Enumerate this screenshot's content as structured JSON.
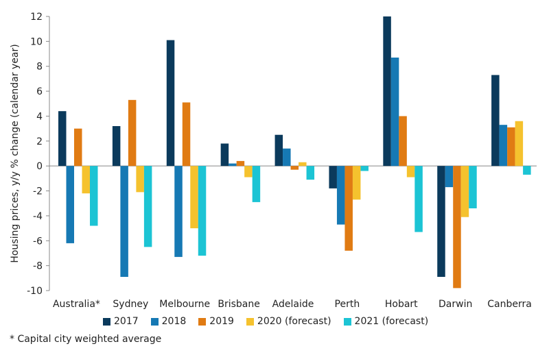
{
  "chart_data": {
    "type": "bar",
    "ylabel": "Housing prices, y/y % change (calendar year)",
    "xlabel": "",
    "ylim": [
      -10,
      12
    ],
    "yticks": [
      12,
      10,
      8,
      6,
      4,
      2,
      0,
      -2,
      -4,
      -6,
      -8,
      -10
    ],
    "categories": [
      "Australia*",
      "Sydney",
      "Melbourne",
      "Brisbane",
      "Adelaide",
      "Perth",
      "Hobart",
      "Darwin",
      "Canberra"
    ],
    "series": [
      {
        "name": "2017",
        "color": "#0b3a5c",
        "values": [
          4.4,
          3.2,
          10.1,
          1.8,
          2.5,
          -1.8,
          12.0,
          -8.9,
          7.3
        ]
      },
      {
        "name": "2018",
        "color": "#1679b4",
        "values": [
          -6.2,
          -8.9,
          -7.3,
          0.2,
          1.4,
          -4.7,
          8.7,
          -1.7,
          3.3
        ]
      },
      {
        "name": "2019",
        "color": "#e07b13",
        "values": [
          3.0,
          5.3,
          5.1,
          0.4,
          -0.3,
          -6.8,
          4.0,
          -9.8,
          3.1
        ]
      },
      {
        "name": "2020 (forecast)",
        "color": "#f5c22e",
        "values": [
          -2.2,
          -2.1,
          -5.0,
          -0.9,
          0.3,
          -2.7,
          -0.9,
          -4.1,
          3.6
        ]
      },
      {
        "name": "2021 (forecast)",
        "color": "#1cc4d4",
        "values": [
          -4.8,
          -6.5,
          -7.2,
          -2.9,
          -1.1,
          -0.4,
          -5.3,
          -3.4,
          -0.7
        ]
      }
    ]
  },
  "footnote": "* Capital city weighted average"
}
